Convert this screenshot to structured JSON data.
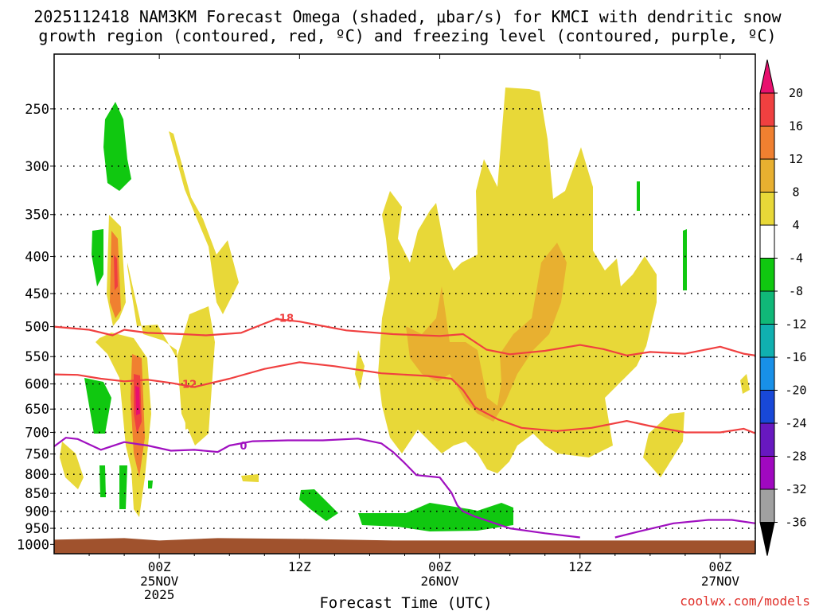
{
  "chart_data": {
    "type": "time-height cross section",
    "title_line1": "2025112418 NAM3KM Forecast Omega (shaded, μbar/s) for KMCI with dendritic snow",
    "title_line2": "growth region (contoured, red, ºC) and freezing level (contoured, purple, ºC)",
    "xlabel": "Forecast Time (UTC)",
    "credit": "coolwx.com/models",
    "x_unit": "hours after 2025-11-25 00Z",
    "xlim": [
      -9,
      51
    ],
    "pressure_ticks": [
      250,
      300,
      350,
      400,
      450,
      500,
      550,
      600,
      650,
      700,
      750,
      800,
      850,
      900,
      950,
      1000
    ],
    "ylim_hpa": [
      1030,
      210
    ],
    "x_ticks": [
      {
        "hour": 0,
        "label": "00Z",
        "sub1": "25NOV",
        "sub2": "2025"
      },
      {
        "hour": 12,
        "label": "12Z",
        "sub1": "",
        "sub2": ""
      },
      {
        "hour": 24,
        "label": "00Z",
        "sub1": "26NOV",
        "sub2": ""
      },
      {
        "hour": 36,
        "label": "12Z",
        "sub1": "",
        "sub2": ""
      },
      {
        "hour": 48,
        "label": "00Z",
        "sub1": "27NOV",
        "sub2": ""
      }
    ],
    "colorbar": {
      "labels": [
        "20",
        "16",
        "12",
        "8",
        "4",
        "-4",
        "-8",
        "-12",
        "-16",
        "-20",
        "-24",
        "-28",
        "-32",
        "-36"
      ],
      "colors": [
        "#e8106e",
        "#f04040",
        "#f08030",
        "#e8b030",
        "#e8d838",
        "#ffffff",
        "#10c810",
        "#10b878",
        "#10b0b0",
        "#1890e8",
        "#1848d8",
        "#6818c0",
        "#a008c0",
        "#a0a0a0",
        "#000000"
      ]
    },
    "ground_color": "#a0522d",
    "series": [
      {
        "name": "-18",
        "color": "#f04040",
        "label": "-18",
        "x": [
          -9,
          -6,
          -4,
          -3,
          -1,
          2,
          4,
          7,
          9,
          10,
          12,
          16,
          20,
          24,
          26,
          28,
          30,
          33,
          36,
          38,
          40,
          42,
          45,
          48,
          50,
          51
        ],
        "y": [
          500,
          505,
          514,
          505,
          510,
          512,
          514,
          510,
          495,
          488,
          492,
          506,
          512,
          515,
          512,
          538,
          546,
          540,
          530,
          537,
          548,
          542,
          545,
          533,
          545,
          548
        ],
        "label_at": [
          10.7,
          486
        ]
      },
      {
        "name": "-12",
        "color": "#f04040",
        "label": "-12",
        "x": [
          -9,
          -7,
          -5,
          -3,
          -1,
          1,
          3,
          6,
          9,
          12,
          15,
          19,
          23,
          25,
          26,
          27,
          29,
          31,
          34,
          37,
          40,
          42,
          45,
          48,
          50,
          51
        ],
        "y": [
          582,
          583,
          590,
          595,
          592,
          598,
          606,
          590,
          572,
          560,
          567,
          580,
          585,
          590,
          612,
          646,
          672,
          690,
          697,
          690,
          675,
          686,
          700,
          700,
          692,
          702
        ],
        "label_at": [
          2.4,
          600
        ]
      },
      {
        "name": "0",
        "color": "#a010c0",
        "label": "0",
        "x": [
          -9,
          -8,
          -7,
          -5,
          -3,
          -1,
          1,
          3,
          5,
          6,
          8,
          11,
          14,
          17,
          19,
          20,
          21,
          22,
          24,
          25,
          25.5,
          26,
          27,
          30,
          33,
          36
        ],
        "y": [
          732,
          712,
          715,
          740,
          722,
          730,
          742,
          740,
          745,
          730,
          720,
          718,
          718,
          714,
          725,
          745,
          772,
          802,
          808,
          848,
          883,
          900,
          915,
          950,
          965,
          978
        ],
        "label_at": [
          7.2,
          730
        ]
      },
      {
        "name": "0-late",
        "color": "#a010c0",
        "label": "",
        "x": [
          39,
          41,
          44,
          47,
          49,
          51
        ],
        "y": [
          978,
          960,
          935,
          925,
          925,
          935
        ],
        "label_at": null
      }
    ]
  }
}
